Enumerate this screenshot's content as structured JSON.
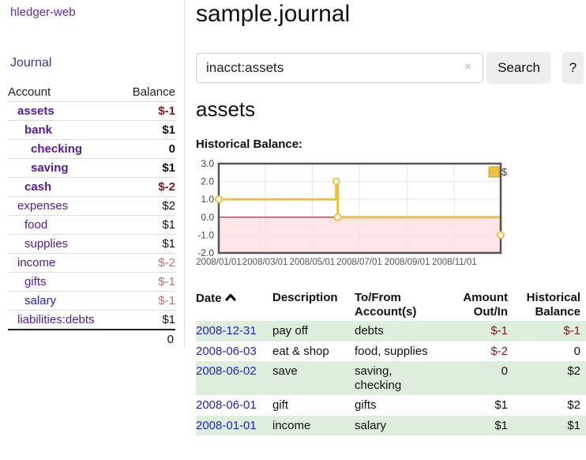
{
  "sidebar": {
    "brand": "hledger-web",
    "nav_journal": "Journal",
    "accounts_table": {
      "col_account": "Account",
      "col_balance": "Balance",
      "rows": [
        {
          "name": "assets",
          "balance": "$-1",
          "level": 1,
          "bold": true,
          "balance_style": "neg"
        },
        {
          "name": "bank",
          "balance": "$1",
          "level": 2,
          "bold": true,
          "balance_style": "pos"
        },
        {
          "name": "checking",
          "balance": "0",
          "level": 3,
          "bold": true,
          "balance_style": "pos"
        },
        {
          "name": "saving",
          "balance": "$1",
          "level": 3,
          "bold": true,
          "balance_style": "pos"
        },
        {
          "name": "cash",
          "balance": "$-2",
          "level": 2,
          "bold": true,
          "balance_style": "neg"
        },
        {
          "name": "expenses",
          "balance": "$2",
          "level": 1,
          "bold": false,
          "balance_style": "pos"
        },
        {
          "name": "food",
          "balance": "$1",
          "level": 2,
          "bold": false,
          "balance_style": "pos"
        },
        {
          "name": "supplies",
          "balance": "$1",
          "level": 2,
          "bold": false,
          "balance_style": "pos"
        },
        {
          "name": "income",
          "balance": "$-2",
          "level": 1,
          "bold": false,
          "balance_style": "neg-faded"
        },
        {
          "name": "gifts",
          "balance": "$-1",
          "level": 2,
          "bold": false,
          "balance_style": "neg-faded"
        },
        {
          "name": "salary",
          "balance": "$-1",
          "level": 2,
          "bold": false,
          "balance_style": "neg-faded",
          "link_style": "blue"
        },
        {
          "name": "liabilities:debts",
          "balance": "$1",
          "level": 1,
          "bold": false,
          "balance_style": "pos"
        }
      ],
      "total": "0"
    }
  },
  "header": {
    "title": "sample.journal"
  },
  "search": {
    "value": "inacct:assets",
    "clear_icon": "×",
    "button_label": "Search",
    "help_label": "?"
  },
  "account_page": {
    "heading": "assets",
    "chart_title": "Historical Balance:"
  },
  "chart_data": {
    "type": "line",
    "step": true,
    "title": "Historical Balance:",
    "series": [
      {
        "name": "$",
        "points": [
          [
            "2008-01-01",
            1
          ],
          [
            "2008-06-01",
            2
          ],
          [
            "2008-06-03",
            0
          ],
          [
            "2008-12-31",
            -1
          ]
        ]
      }
    ],
    "xlim": [
      "2008-01-01",
      "2008-12-31"
    ],
    "ylim": [
      -2,
      3
    ],
    "y_ticks": [
      3.0,
      2.0,
      1.0,
      0.0,
      -1.0,
      -2.0
    ],
    "x_ticks": [
      "2008/01/01",
      "2008/03/01",
      "2008/05/01",
      "2008/07/01",
      "2008/09/01",
      "2008/11/01"
    ],
    "grid": true,
    "legend": {
      "label": "$",
      "position": "top-right"
    },
    "colors": {
      "line": "#edc240",
      "legend_border": "#c7a22e",
      "negative_fill": "rgba(255,0,0,0.10)",
      "zero_line": "#8b2222",
      "grid": "#e7e7e7",
      "border": "#545454",
      "tick_text": "#545454"
    }
  },
  "register_table": {
    "columns": {
      "date": "Date",
      "description": "Description",
      "tofrom_line1": "To/From",
      "tofrom_line2": "Account(s)",
      "amount_line1": "Amount",
      "amount_line2": "Out/In",
      "hist_line1": "Historical",
      "hist_line2": "Balance"
    },
    "rows": [
      {
        "date": "2008-12-31",
        "description": "pay off",
        "accounts": [
          "debts"
        ],
        "amount": "$-1",
        "amount_neg": true,
        "balance": "$-1",
        "balance_neg": true,
        "shaded": true
      },
      {
        "date": "2008-06-03",
        "description": "eat & shop",
        "accounts": [
          "food, supplies"
        ],
        "amount": "$-2",
        "amount_neg": true,
        "balance": "0",
        "balance_neg": false,
        "shaded": false
      },
      {
        "date": "2008-06-02",
        "description": "save",
        "accounts": [
          "saving,",
          "checking"
        ],
        "amount": "0",
        "amount_neg": false,
        "balance": "$2",
        "balance_neg": false,
        "shaded": true
      },
      {
        "date": "2008-06-01",
        "description": "gift",
        "accounts": [
          "gifts"
        ],
        "amount": "$1",
        "amount_neg": false,
        "balance": "$2",
        "balance_neg": false,
        "shaded": false
      },
      {
        "date": "2008-01-01",
        "description": "income",
        "accounts": [
          "salary"
        ],
        "amount": "$1",
        "amount_neg": false,
        "balance": "$1",
        "balance_neg": false,
        "shaded": true
      }
    ]
  }
}
